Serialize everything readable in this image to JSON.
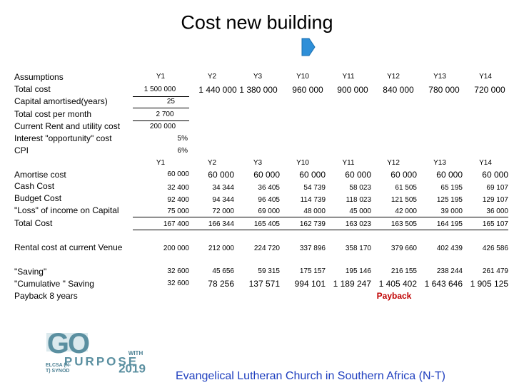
{
  "title": "Cost  new building",
  "assumptions": {
    "labels": [
      "Assumptions",
      "Total cost",
      "Capital amortised(years)",
      "Total cost per month",
      "Current Rent  and utility cost",
      "Interest \"opportunity\" cost",
      "CPI"
    ],
    "columns": [
      "Y1",
      "Y2",
      "Y3",
      "Y10",
      "Y11",
      "Y12",
      "Y13",
      "Y14"
    ],
    "total_cost": [
      "1 500 000",
      "1 440 000",
      "1 380 000",
      "960 000",
      "900 000",
      "840 000",
      "780 000",
      "720 000"
    ],
    "amortised_years": "25",
    "cost_per_month": "2 700",
    "current_rent": "200 000",
    "interest": "5%",
    "cpi": "6%"
  },
  "projection": {
    "columns": [
      "Y1",
      "Y2",
      "Y3",
      "Y10",
      "Y11",
      "Y12",
      "Y13",
      "Y14"
    ],
    "rows": [
      {
        "label": "Amortise cost",
        "values": [
          "60 000",
          "60 000",
          "60 000",
          "60 000",
          "60 000",
          "60 000",
          "60 000",
          "60 000"
        ]
      },
      {
        "label": "Cash Cost",
        "values": [
          "32 400",
          "34 344",
          "36 405",
          "54 739",
          "58 023",
          "61 505",
          "65 195",
          "69 107"
        ]
      },
      {
        "label": "Budget Cost",
        "values": [
          "92 400",
          "94 344",
          "96 405",
          "114 739",
          "118 023",
          "121 505",
          "125 195",
          "129 107"
        ]
      },
      {
        "label": "\"Loss\" of income on Capital",
        "values": [
          "75 000",
          "72 000",
          "69 000",
          "48 000",
          "45 000",
          "42 000",
          "39 000",
          "36 000"
        ]
      },
      {
        "label": "Total Cost",
        "values": [
          "167 400",
          "166 344",
          "165 405",
          "162 739",
          "163 023",
          "163 505",
          "164 195",
          "165 107"
        ]
      }
    ]
  },
  "rental": {
    "label": "Rental cost at current Venue",
    "values": [
      "200 000",
      "212 000",
      "224 720",
      "337 896",
      "358 170",
      "379 660",
      "402 439",
      "426 586"
    ]
  },
  "savings": [
    {
      "label": "\"Saving\"",
      "values": [
        "32 600",
        "45 656",
        "59 315",
        "175 157",
        "195 146",
        "216 155",
        "238 244",
        "261 479"
      ]
    },
    {
      "label": "\"Cumulative \" Saving",
      "values": [
        "32 600",
        "78 256",
        "137 571",
        "994 101",
        "1 189 247",
        "1 405 402",
        "1 643 646",
        "1 905 125"
      ]
    }
  ],
  "payback": {
    "label": "Payback 8 years",
    "marker": "Payback"
  },
  "logo": {
    "go": "GO",
    "with": "WITH",
    "purpose": "PURPOSE",
    "synod": "ELCSA (N-T) SYNOD",
    "year": "2019"
  },
  "footer": "Evangelical Lutheran Church in Southern Africa (N-T)"
}
